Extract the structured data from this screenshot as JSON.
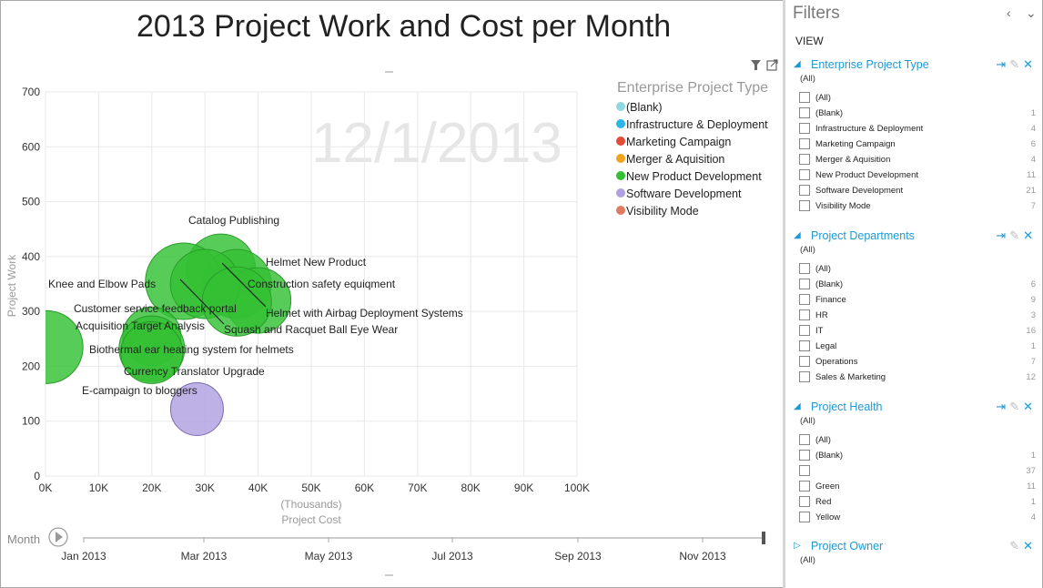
{
  "chart_data": {
    "type": "scatter",
    "title": "2013 Project Work and Cost per Month",
    "xlabel": "Project Cost",
    "xlabel_unit": "(Thousands)",
    "ylabel": "Project Work",
    "xlim": [
      0,
      100
    ],
    "ylim": [
      0,
      700
    ],
    "x_ticks": [
      "0K",
      "10K",
      "20K",
      "30K",
      "40K",
      "50K",
      "60K",
      "70K",
      "80K",
      "90K",
      "100K"
    ],
    "y_ticks": [
      "0",
      "100",
      "200",
      "300",
      "400",
      "500",
      "600",
      "700"
    ],
    "grid": true,
    "watermark": "12/1/2013",
    "legend_title": "Enterprise Project Type",
    "legend_position": "top-right",
    "legend": [
      {
        "name": "(Blank)",
        "color": "#8fd8e0"
      },
      {
        "name": "Infrastructure & Deployment",
        "color": "#2bb6e8"
      },
      {
        "name": "Marketing Campaign",
        "color": "#e24c38"
      },
      {
        "name": "Merger & Aquisition",
        "color": "#f2a41f"
      },
      {
        "name": "New Product Development",
        "color": "#33c133"
      },
      {
        "name": "Software Development",
        "color": "#b0a0e0"
      },
      {
        "name": "Visibility Mode",
        "color": "#e07a62"
      }
    ],
    "points": [
      {
        "label": "Knee and Elbow Pads",
        "x": 0.2,
        "y": 235,
        "size": 40,
        "category": "New Product Development"
      },
      {
        "label": "Catalog Publishing",
        "x": 33,
        "y": 378,
        "size": 38,
        "category": "New Product Development"
      },
      {
        "label": "Helmet New Product",
        "x": 36,
        "y": 350,
        "size": 38,
        "category": "New Product Development"
      },
      {
        "label": "Construction safety equiqment",
        "x": 40,
        "y": 320,
        "size": 36,
        "category": "New Product Development"
      },
      {
        "label": "Helmet with Airbag Deployment Systems",
        "x": 26,
        "y": 355,
        "size": 42,
        "category": "New Product Development"
      },
      {
        "label": "Customer service feedback portal",
        "x": 30,
        "y": 350,
        "size": 38,
        "category": "New Product Development"
      },
      {
        "label": "Squash and Racquet Ball Eye Wear",
        "x": 36,
        "y": 318,
        "size": 38,
        "category": "New Product Development"
      },
      {
        "label": "Acquisition Target Analysis",
        "x": 20,
        "y": 255,
        "size": 32,
        "category": "New Product Development"
      },
      {
        "label": "Biothermal ear heating system for helmets",
        "x": 20,
        "y": 232,
        "size": 36,
        "category": "New Product Development"
      },
      {
        "label": "Currency Translator Upgrade",
        "x": 20,
        "y": 225,
        "size": 34,
        "category": "New Product Development"
      },
      {
        "label": "E-campaign to bloggers",
        "x": 28.5,
        "y": 122,
        "size": 29,
        "category": "Software Development"
      }
    ]
  },
  "chart_toolbar": {
    "filter_icon": "filter-icon",
    "popout_icon": "popout-icon"
  },
  "play_axis": {
    "label": "Month",
    "ticks": [
      "Jan 2013",
      "Mar 2013",
      "May 2013",
      "Jul 2013",
      "Sep 2013",
      "Nov 2013"
    ],
    "current": "Dec 2013"
  },
  "filters": {
    "title": "Filters",
    "view_label": "VIEW",
    "sections": [
      {
        "title": "Enterprise Project Type",
        "summary": "(All)",
        "expanded": true,
        "items": [
          {
            "label": "(All)",
            "count": ""
          },
          {
            "label": "(Blank)",
            "count": "1"
          },
          {
            "label": "Infrastructure & Deployment",
            "count": "4"
          },
          {
            "label": "Marketing Campaign",
            "count": "6"
          },
          {
            "label": "Merger & Aquisition",
            "count": "4"
          },
          {
            "label": "New Product Development",
            "count": "11"
          },
          {
            "label": "Software Development",
            "count": "21"
          },
          {
            "label": "Visibility Mode",
            "count": "7"
          }
        ]
      },
      {
        "title": "Project Departments",
        "summary": "(All)",
        "expanded": true,
        "items": [
          {
            "label": "(All)",
            "count": ""
          },
          {
            "label": "(Blank)",
            "count": "6"
          },
          {
            "label": "Finance",
            "count": "9"
          },
          {
            "label": "HR",
            "count": "3"
          },
          {
            "label": "IT",
            "count": "16"
          },
          {
            "label": "Legal",
            "count": "1"
          },
          {
            "label": "Operations",
            "count": "7"
          },
          {
            "label": "Sales & Marketing",
            "count": "12"
          }
        ]
      },
      {
        "title": "Project Health",
        "summary": "(All)",
        "expanded": true,
        "items": [
          {
            "label": "(All)",
            "count": ""
          },
          {
            "label": "(Blank)",
            "count": "1"
          },
          {
            "label": "",
            "count": "37"
          },
          {
            "label": "Green",
            "count": "11"
          },
          {
            "label": "Red",
            "count": "1"
          },
          {
            "label": "Yellow",
            "count": "4"
          }
        ]
      },
      {
        "title": "Project Owner",
        "summary": "(All)",
        "expanded": false,
        "items": []
      }
    ]
  }
}
